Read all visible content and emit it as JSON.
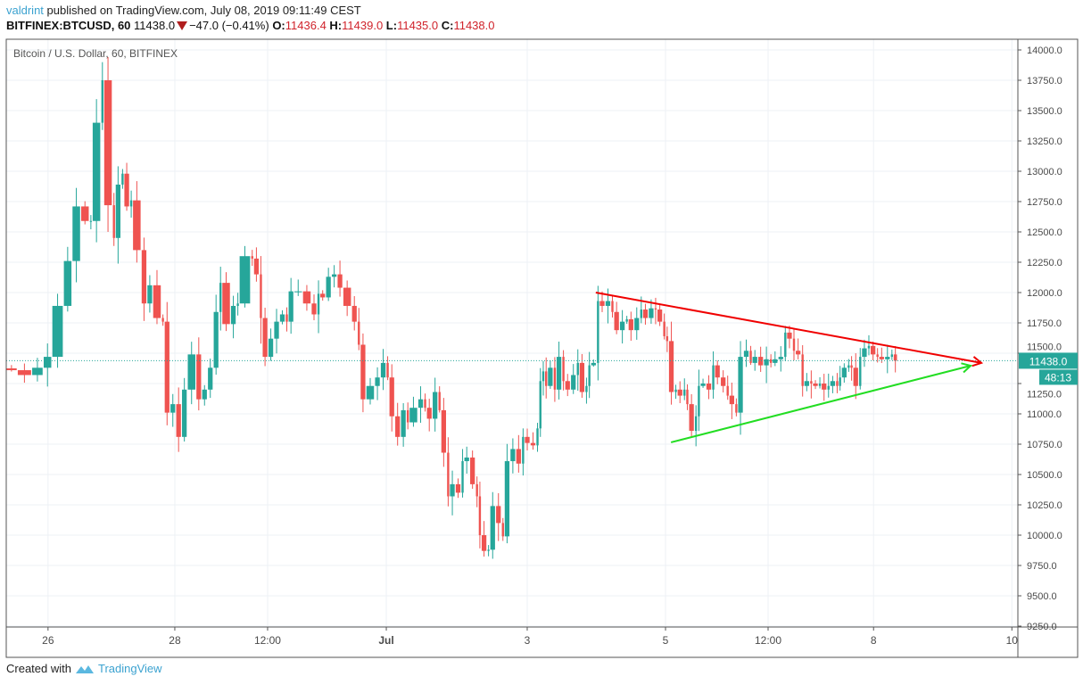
{
  "header": {
    "author": "valdrint",
    "published_text": "published on TradingView.com, July 08, 2019 09:11:49 CEST",
    "symbol": "BITFINEX:BTCUSD, 60",
    "last": "11438.0",
    "change": "−47.0 (−0.41%)",
    "o_label": "O:",
    "o": "11436.4",
    "h_label": "H:",
    "h": "11439.0",
    "l_label": "L:",
    "l": "11435.0",
    "c_label": "C:",
    "c": "11438.0"
  },
  "footer": {
    "created_with": "Created with",
    "brand": "TradingView"
  },
  "colors": {
    "up": "#26a69a",
    "down": "#ef5350",
    "resistance": "#f00000",
    "support": "#22dd22",
    "last_price": "#26a69a"
  },
  "chart_data": {
    "type": "candlestick",
    "title": "Bitcoin / U.S. Dollar, 60, BITFINEX",
    "ylim": [
      9250,
      14000
    ],
    "y_ticks": [
      "9250.0",
      "9500.0",
      "9750.0",
      "10000.0",
      "10250.0",
      "10500.0",
      "10750.0",
      "11000.0",
      "11250.0",
      "11500.0",
      "11750.0",
      "12000.0",
      "12250.0",
      "12500.0",
      "12750.0",
      "13000.0",
      "13250.0",
      "13500.0",
      "13750.0",
      "14000.0"
    ],
    "x_unit": "hourly bar index",
    "xlim": [
      0,
      351
    ],
    "x_ticks": [
      {
        "bar": 14.5,
        "label": "26"
      },
      {
        "bar": 58.5,
        "label": "28"
      },
      {
        "bar": 90.7,
        "label": "12:00"
      },
      {
        "bar": 131.9,
        "label": "Jul"
      },
      {
        "bar": 180.8,
        "label": "3"
      },
      {
        "bar": 228.8,
        "label": "5"
      },
      {
        "bar": 264.4,
        "label": "12:00"
      },
      {
        "bar": 301,
        "label": "8"
      },
      {
        "bar": 349,
        "label": "10"
      }
    ],
    "bars": [
      0,
      4,
      9,
      13,
      16,
      20,
      23,
      26,
      29,
      30,
      33,
      34,
      37,
      38,
      40,
      41,
      43,
      44,
      47,
      49,
      51,
      54,
      55,
      57,
      59,
      61,
      63,
      66,
      68,
      70,
      72,
      74,
      75,
      78,
      80,
      81,
      85,
      86,
      88,
      89,
      91,
      93,
      95,
      97,
      98,
      100,
      103,
      106,
      108,
      109,
      111,
      113,
      115,
      117,
      120,
      122,
      123,
      125,
      128,
      130,
      132,
      133,
      135,
      137,
      139,
      140,
      143,
      145,
      146,
      148,
      150,
      151,
      153,
      154,
      156,
      158,
      159,
      161,
      163,
      164,
      165,
      167,
      168,
      170,
      172,
      173,
      175,
      177,
      179,
      180,
      182,
      184,
      185,
      186,
      187,
      188,
      190,
      191,
      193,
      194,
      196,
      198,
      199,
      201,
      202,
      203,
      205,
      206,
      208,
      210,
      211,
      213,
      215,
      216,
      218,
      220,
      221,
      223,
      225,
      226,
      228,
      229,
      230,
      232,
      233,
      235,
      236,
      237,
      239,
      240,
      241,
      243,
      245,
      246,
      248,
      250,
      251,
      253,
      254,
      256,
      258,
      259,
      261,
      263,
      265,
      266,
      268,
      270,
      271,
      273,
      274,
      276,
      277,
      279,
      280,
      282,
      283,
      285,
      286,
      288,
      289,
      290,
      292,
      293,
      294,
      296,
      297,
      299,
      300,
      302,
      303,
      305,
      307,
      308
    ],
    "close": [
      11360,
      11320,
      11380,
      11470,
      11890,
      12260,
      12710,
      12590,
      12590,
      13400,
      13750,
      12720,
      12450,
      12890,
      12980,
      12710,
      12760,
      12350,
      11910,
      12060,
      11790,
      11760,
      11010,
      11080,
      10810,
      11200,
      11490,
      11120,
      11200,
      11380,
      11840,
      12080,
      11740,
      11890,
      11910,
      12300,
      12280,
      12150,
      11790,
      11470,
      11620,
      11760,
      11820,
      11760,
      12010,
      12010,
      11910,
      11820,
      11990,
      11960,
      12130,
      12150,
      12040,
      11890,
      11760,
      11570,
      11120,
      11230,
      11300,
      11420,
      11300,
      10980,
      10810,
      11030,
      10930,
      11050,
      11120,
      11050,
      10960,
      11180,
      11030,
      10680,
      10320,
      10420,
      10350,
      10610,
      10640,
      10420,
      10320,
      10000,
      9870,
      9880,
      10240,
      10100,
      9990,
      10610,
      10710,
      10590,
      10810,
      10760,
      10740,
      10880,
      11270,
      11350,
      11230,
      11380,
      11200,
      11470,
      11270,
      11200,
      11320,
      11420,
      11180,
      11230,
      11400,
      11420,
      11930,
      11890,
      11930,
      11840,
      11690,
      11760,
      11780,
      11690,
      11790,
      11860,
      11790,
      11870,
      11860,
      11760,
      11640,
      11600,
      11180,
      11200,
      11150,
      11200,
      11080,
      10860,
      10980,
      11230,
      11250,
      11200,
      11400,
      11300,
      11230,
      11150,
      11080,
      11010,
      11470,
      11520,
      11420,
      11470,
      11400,
      11450,
      11420,
      11450,
      11470,
      11670,
      11620,
      11520,
      11490,
      11230,
      11270,
      11250,
      11230,
      11250,
      11200,
      11230,
      11270,
      11230,
      11300,
      11380,
      11400,
      11380,
      11230,
      11470,
      11540,
      11560,
      11490,
      11470,
      11450,
      11470,
      11490,
      11438
    ],
    "last_price": 11438.0,
    "last_price_label": "11438.0",
    "countdown_label": "48:13",
    "trendlines": [
      {
        "name": "resistance",
        "from": {
          "bar": 204.6,
          "price": 12000
        },
        "to": {
          "bar": 338.4,
          "price": 11420
        },
        "arrow": true
      },
      {
        "name": "support",
        "from": {
          "bar": 230.7,
          "price": 10765
        },
        "to": {
          "bar": 334.7,
          "price": 11397
        },
        "arrow": true
      }
    ]
  }
}
